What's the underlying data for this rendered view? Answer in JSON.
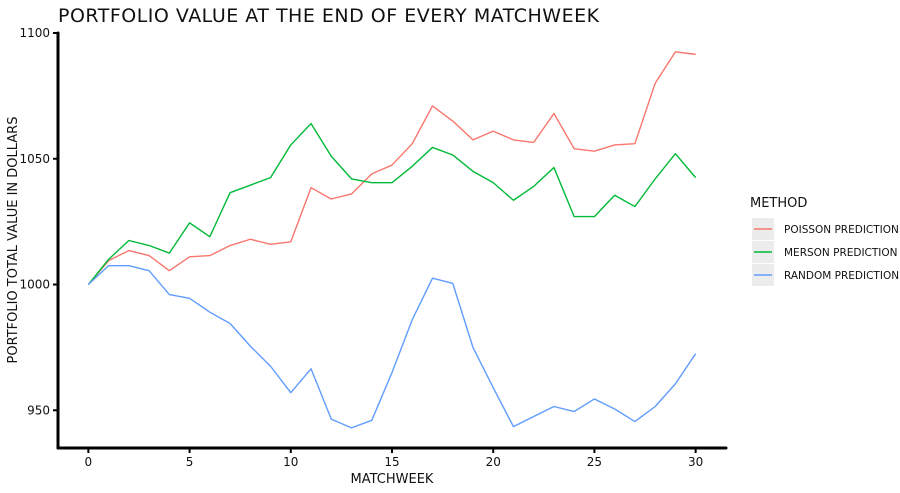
{
  "chart_data": {
    "type": "line",
    "title": "PORTFOLIO VALUE AT THE END OF EVERY MATCHWEEK",
    "xlabel": "MATCHWEEK",
    "ylabel": "PORTFOLIO TOTAL VALUE IN DOLLARS",
    "xlim": [
      -1.5,
      31.5
    ],
    "ylim": [
      935,
      1100
    ],
    "xticks": [
      0,
      5,
      10,
      15,
      20,
      25,
      30
    ],
    "yticks": [
      950,
      1000,
      1050,
      1100
    ],
    "grid": false,
    "legend": {
      "title": "METHOD",
      "position": "right"
    },
    "x": [
      0,
      1,
      2,
      3,
      4,
      5,
      6,
      7,
      8,
      9,
      10,
      11,
      12,
      13,
      14,
      15,
      16,
      17,
      18,
      19,
      20,
      21,
      22,
      23,
      24,
      25,
      26,
      27,
      28,
      29,
      30
    ],
    "series": [
      {
        "name": "POISSON PREDICTION",
        "color": "#F8766D",
        "values": [
          1000,
          1009.5,
          1013.5,
          1011.5,
          1005.5,
          1011,
          1011.5,
          1015.5,
          1018,
          1016,
          1017,
          1038.5,
          1034,
          1036,
          1044,
          1047.5,
          1056,
          1071,
          1065,
          1057.5,
          1061,
          1057.5,
          1056.5,
          1068,
          1054,
          1053,
          1055.5,
          1056,
          1080,
          1092.5,
          1091.5
        ]
      },
      {
        "name": "MERSON PREDICTION",
        "color": "#00BA38",
        "values": [
          1000,
          1010,
          1017.5,
          1015.5,
          1012.5,
          1024.5,
          1019,
          1036.5,
          1039.5,
          1042.5,
          1055.5,
          1064,
          1051,
          1042,
          1040.5,
          1040.5,
          1047,
          1054.5,
          1051.5,
          1045,
          1040.5,
          1033.5,
          1039,
          1046.5,
          1027,
          1027,
          1035.5,
          1031,
          1042,
          1052,
          1042.5
        ]
      },
      {
        "name": "RANDOM PREDICTION",
        "color": "#619CFF",
        "values": [
          1000,
          1007.5,
          1007.5,
          1005.5,
          996,
          994.5,
          989,
          984.5,
          975.5,
          967.5,
          957,
          966.5,
          946.5,
          943,
          946,
          965,
          986,
          1002.5,
          1000.5,
          975,
          959,
          943.5,
          947.5,
          951.5,
          949.5,
          954.5,
          950.5,
          945.5,
          951.5,
          960.5,
          972.5
        ]
      }
    ]
  }
}
